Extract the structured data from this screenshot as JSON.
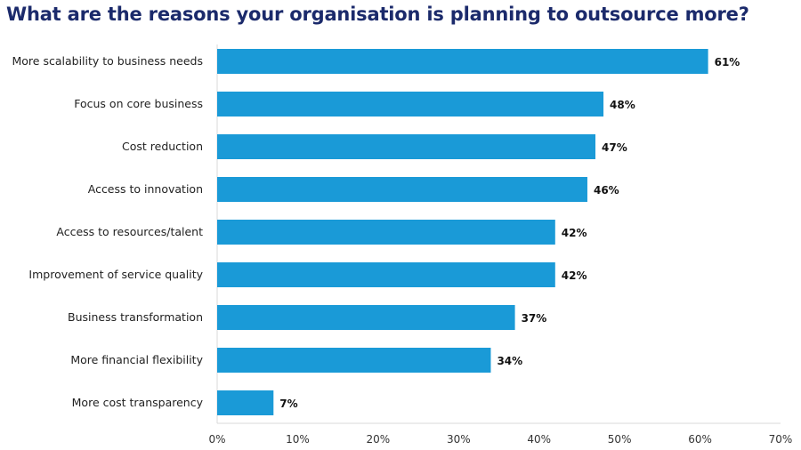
{
  "chart_data": {
    "type": "bar",
    "orientation": "horizontal",
    "title": "What are the reasons your organisation is planning to outsource more?",
    "categories": [
      "More scalability to business needs",
      "Focus on core business",
      "Cost reduction",
      "Access to innovation",
      "Access to resources/talent",
      "Improvement of service quality",
      "Business transformation",
      "More financial flexibility",
      "More cost transparency"
    ],
    "values": [
      61,
      48,
      47,
      46,
      42,
      42,
      37,
      34,
      7
    ],
    "value_labels": [
      "61%",
      "48%",
      "47%",
      "46%",
      "42%",
      "42%",
      "37%",
      "34%",
      "7%"
    ],
    "xlim": [
      0,
      70
    ],
    "xticks": [
      "0%",
      "10%",
      "20%",
      "30%",
      "40%",
      "50%",
      "60%",
      "70%"
    ],
    "xlabel": "",
    "ylabel": "",
    "grid": false,
    "legend": "none",
    "bar_color": "#1a9ad7",
    "title_color": "#1b2a6b"
  }
}
